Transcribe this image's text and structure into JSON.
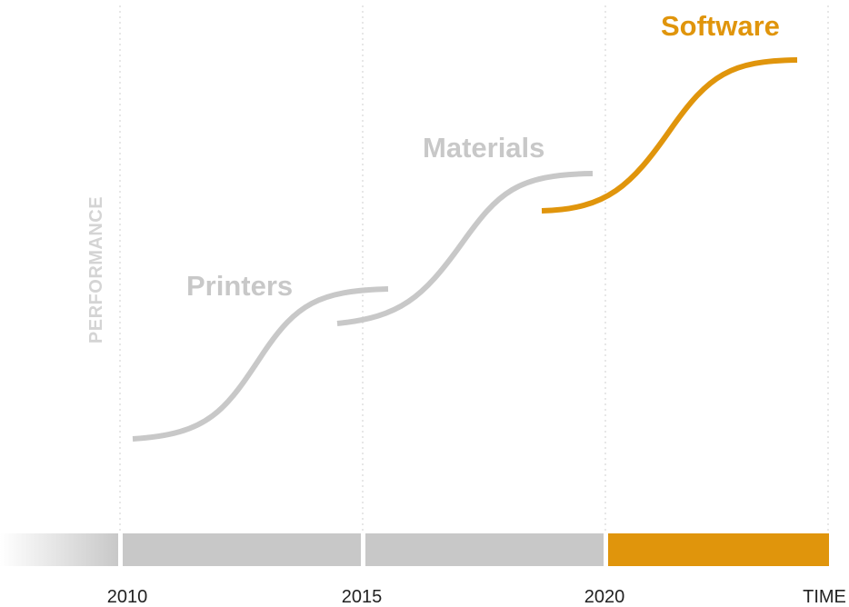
{
  "axes": {
    "y_label": "PERFORMANCE",
    "x_end_label": "TIME",
    "ticks": [
      "2010",
      "2015",
      "2020"
    ]
  },
  "curves": [
    {
      "label": "Printers",
      "color": "#c8c8c8"
    },
    {
      "label": "Materials",
      "color": "#c8c8c8"
    },
    {
      "label": "Software",
      "color": "#e0950c"
    }
  ],
  "colors": {
    "accent": "#e0950c",
    "inactive": "#c8c8c8",
    "axis_label": "#d4d4d4",
    "grid": "#cfcfcf"
  }
}
